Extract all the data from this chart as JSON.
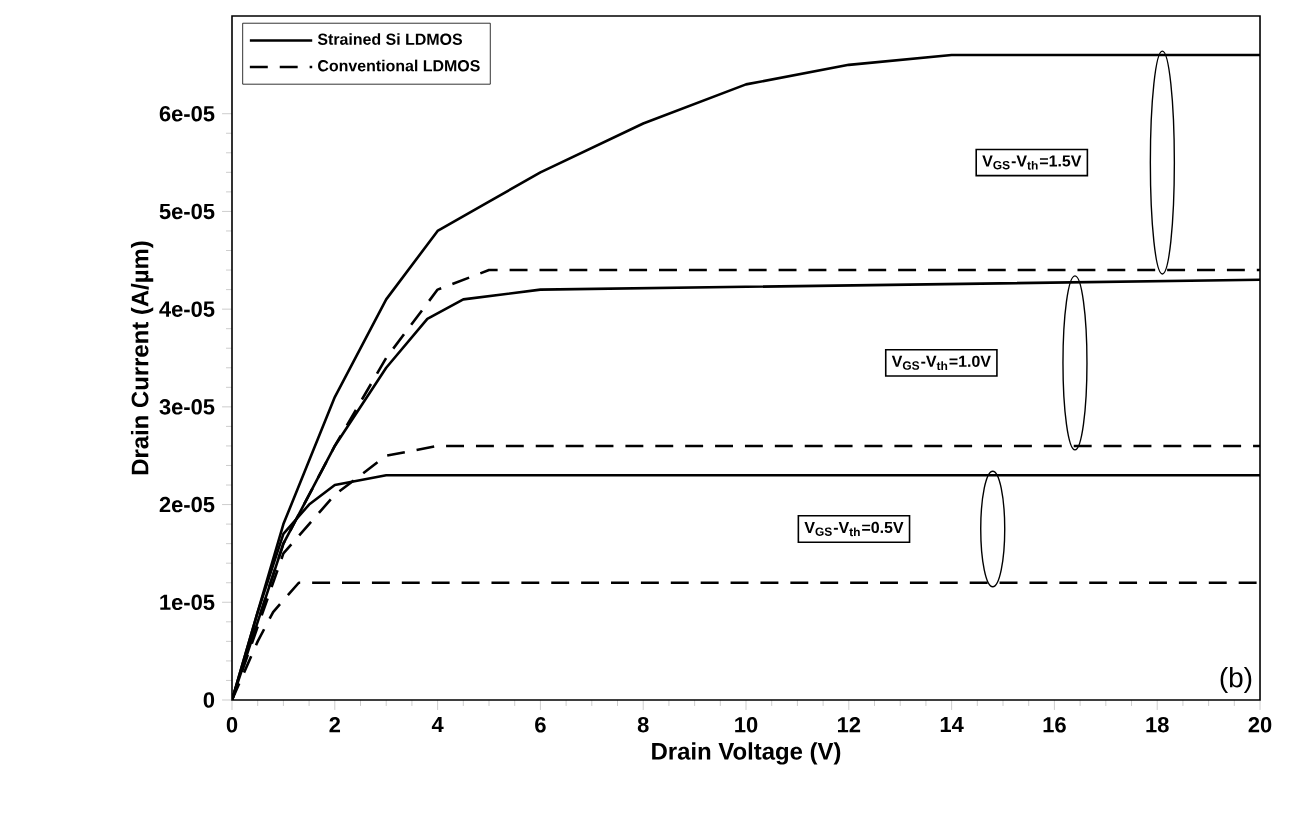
{
  "chart_data": {
    "type": "line",
    "xlabel": "Drain Voltage (V)",
    "ylabel": "Drain Current (A/µm)",
    "xlim": [
      0,
      20
    ],
    "ylim": [
      0,
      7e-05
    ],
    "xticks": [
      0,
      2,
      4,
      6,
      8,
      10,
      12,
      14,
      16,
      18,
      20
    ],
    "yticks": [
      0,
      {
        "value": 1e-05,
        "label": "1e-05"
      },
      {
        "value": 2e-05,
        "label": "2e-05"
      },
      {
        "value": 3e-05,
        "label": "3e-05"
      },
      {
        "value": 4e-05,
        "label": "4e-05"
      },
      {
        "value": 5e-05,
        "label": "5e-05"
      },
      {
        "value": 6e-05,
        "label": "6e-05"
      }
    ],
    "legend": "top left",
    "grid": false,
    "marker": "none",
    "series": [
      {
        "name": "Strained Si LDMOS",
        "color": "#000000",
        "line_style": "solid",
        "x": [
          0,
          1,
          2,
          3,
          4,
          5,
          6,
          8,
          10,
          12,
          14,
          16,
          20
        ],
        "values": [
          0,
          1.8e-05,
          3.1e-05,
          4.1e-05,
          4.8e-05,
          5.1e-05,
          5.4e-05,
          5.9e-05,
          6.3e-05,
          6.5e-05,
          6.6e-05,
          6.6e-05,
          6.6e-05
        ]
      },
      {
        "color": "#000000",
        "line_style": "solid",
        "x": [
          0,
          1,
          2,
          3,
          3.8,
          4.5,
          6,
          20
        ],
        "values": [
          0,
          1.6e-05,
          2.6e-05,
          3.4e-05,
          3.9e-05,
          4.1e-05,
          4.2e-05,
          4.3e-05
        ]
      },
      {
        "color": "#000000",
        "line_style": "solid",
        "x": [
          0,
          0.5,
          1,
          1.5,
          2,
          3,
          20
        ],
        "values": [
          0,
          9e-06,
          1.7e-05,
          2e-05,
          2.2e-05,
          2.3e-05,
          2.3e-05
        ]
      },
      {
        "name": "Conventional LDMOS",
        "color": "#000000",
        "line_style": "dashed",
        "x": [
          0,
          1,
          2,
          3,
          4,
          5,
          20
        ],
        "values": [
          0,
          1.6e-05,
          2.6e-05,
          3.5e-05,
          4.2e-05,
          4.4e-05,
          4.4e-05
        ]
      },
      {
        "color": "#000000",
        "line_style": "dashed",
        "x": [
          0,
          1,
          1.5,
          2,
          3,
          4,
          6,
          20
        ],
        "values": [
          0,
          1.5e-05,
          1.8e-05,
          2.1e-05,
          2.5e-05,
          2.6e-05,
          2.6e-05,
          2.6e-05
        ]
      },
      {
        "color": "#000000",
        "line_style": "dashed",
        "x": [
          0,
          0.5,
          0.8,
          1.3,
          2,
          20
        ],
        "values": [
          0,
          6e-06,
          9e-06,
          1.2e-05,
          1.2e-05,
          1.2e-05
        ]
      }
    ],
    "annotations": [
      "V$_{GS}$-V$_{th}$=1.5V",
      "V$_{GS}$-V$_{th}$=1.0V",
      "V$_{GS}$-V$_{th}$=0.5V",
      "(b)"
    ]
  }
}
